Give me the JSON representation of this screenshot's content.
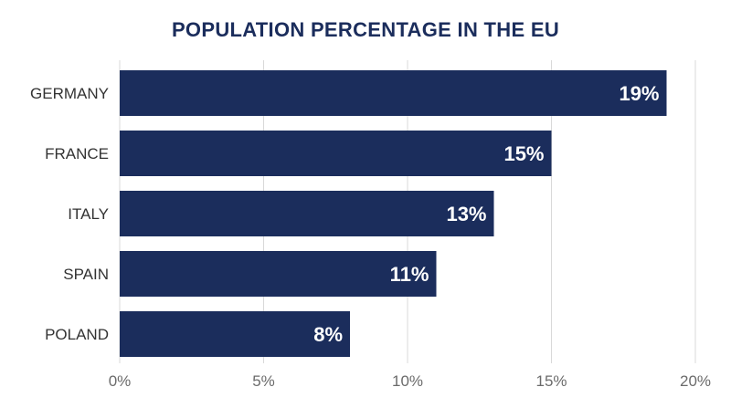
{
  "chart_data": {
    "type": "bar",
    "orientation": "horizontal",
    "title": "POPULATION PERCENTAGE IN THE EU",
    "categories": [
      "GERMANY",
      "FRANCE",
      "ITALY",
      "SPAIN",
      "POLAND"
    ],
    "values": [
      19,
      15,
      13,
      11,
      8
    ],
    "value_labels": [
      "19%",
      "15%",
      "13%",
      "11%",
      "8%"
    ],
    "xlim": [
      0,
      20
    ],
    "xticks": [
      0,
      5,
      10,
      15,
      20
    ],
    "xtick_labels": [
      "0%",
      "5%",
      "10%",
      "15%",
      "20%"
    ],
    "xlabel": "",
    "ylabel": "",
    "grid": true,
    "legend": "none",
    "colors": {
      "bar": "#1b2d5c",
      "title": "#1b2d5c",
      "grid": "#d9d9d9",
      "value_label": "#ffffff"
    }
  }
}
